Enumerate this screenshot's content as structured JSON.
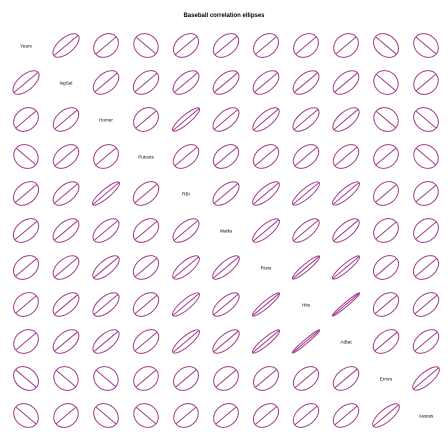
{
  "chart_data": {
    "type": "correlation-ellipse-matrix",
    "title": "Baseball correlation ellipses",
    "variables": [
      "Years",
      "logSal",
      "Homer",
      "Putouts",
      "RBI",
      "Walks",
      "Runs",
      "Hits",
      "AtBat",
      "Errors",
      "Assists"
    ],
    "correlations": [
      [
        1.0,
        0.54,
        0.11,
        -0.02,
        0.24,
        0.29,
        0.18,
        0.13,
        0.1,
        -0.16,
        -0.09
      ],
      [
        0.54,
        1.0,
        0.34,
        0.3,
        0.45,
        0.44,
        0.42,
        0.44,
        0.4,
        -0.01,
        0.05
      ],
      [
        0.11,
        0.34,
        1.0,
        0.12,
        0.85,
        0.48,
        0.63,
        0.53,
        0.55,
        -0.02,
        -0.1
      ],
      [
        -0.02,
        0.3,
        0.12,
        1.0,
        0.32,
        0.28,
        0.27,
        0.3,
        0.31,
        0.09,
        -0.04
      ],
      [
        0.24,
        0.45,
        0.85,
        0.32,
        1.0,
        0.5,
        0.7,
        0.81,
        0.8,
        0.15,
        0.06
      ],
      [
        0.29,
        0.44,
        0.48,
        0.28,
        0.5,
        1.0,
        0.73,
        0.62,
        0.63,
        0.1,
        0.12
      ],
      [
        0.18,
        0.42,
        0.63,
        0.27,
        0.7,
        0.73,
        1.0,
        0.91,
        0.89,
        0.2,
        0.23
      ],
      [
        0.13,
        0.44,
        0.53,
        0.3,
        0.81,
        0.62,
        0.91,
        1.0,
        0.97,
        0.27,
        0.32
      ],
      [
        0.1,
        0.4,
        0.55,
        0.31,
        0.8,
        0.63,
        0.89,
        0.97,
        1.0,
        0.33,
        0.34
      ],
      [
        -0.16,
        -0.01,
        -0.02,
        0.09,
        0.15,
        0.1,
        0.2,
        0.27,
        0.33,
        1.0,
        0.7
      ],
      [
        -0.09,
        0.05,
        -0.1,
        -0.04,
        0.06,
        0.12,
        0.23,
        0.32,
        0.34,
        0.7,
        1.0
      ]
    ],
    "ellipse_color": "#a23b8c"
  }
}
